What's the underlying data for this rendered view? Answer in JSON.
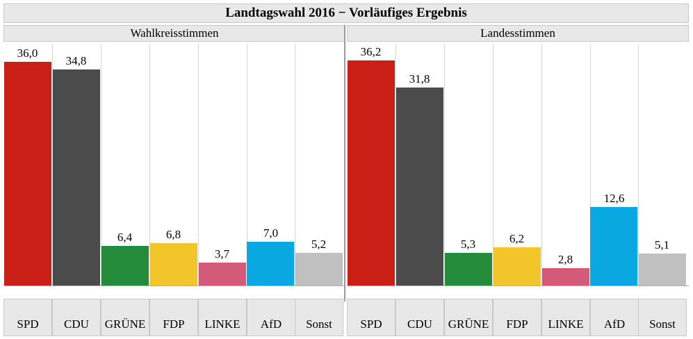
{
  "chart_data": {
    "type": "bar",
    "title": "Landtagswahl 2016 − Vorläufiges Ergebnis",
    "categories": [
      "SPD",
      "CDU",
      "GRÜNE",
      "FDP",
      "LINKE",
      "AfD",
      "Sonst"
    ],
    "colors": [
      "#c91f16",
      "#4b4b4b",
      "#238b3a",
      "#f2c52b",
      "#d45a7a",
      "#0aa8e0",
      "#c0c0c0"
    ],
    "panels": [
      {
        "title": "Wahlkreisstimmen",
        "values": [
          36.0,
          34.8,
          6.4,
          6.8,
          3.7,
          7.0,
          5.2
        ],
        "labels": [
          "36,0",
          "34,8",
          "6,4",
          "6,8",
          "3,7",
          "7,0",
          "5,2"
        ]
      },
      {
        "title": "Landesstimmen",
        "values": [
          36.2,
          31.8,
          5.3,
          6.2,
          2.8,
          12.6,
          5.1
        ],
        "labels": [
          "36,2",
          "31,8",
          "5,3",
          "6,2",
          "2,8",
          "12,6",
          "5,1"
        ]
      }
    ],
    "ylim": [
      0,
      36.4
    ]
  }
}
